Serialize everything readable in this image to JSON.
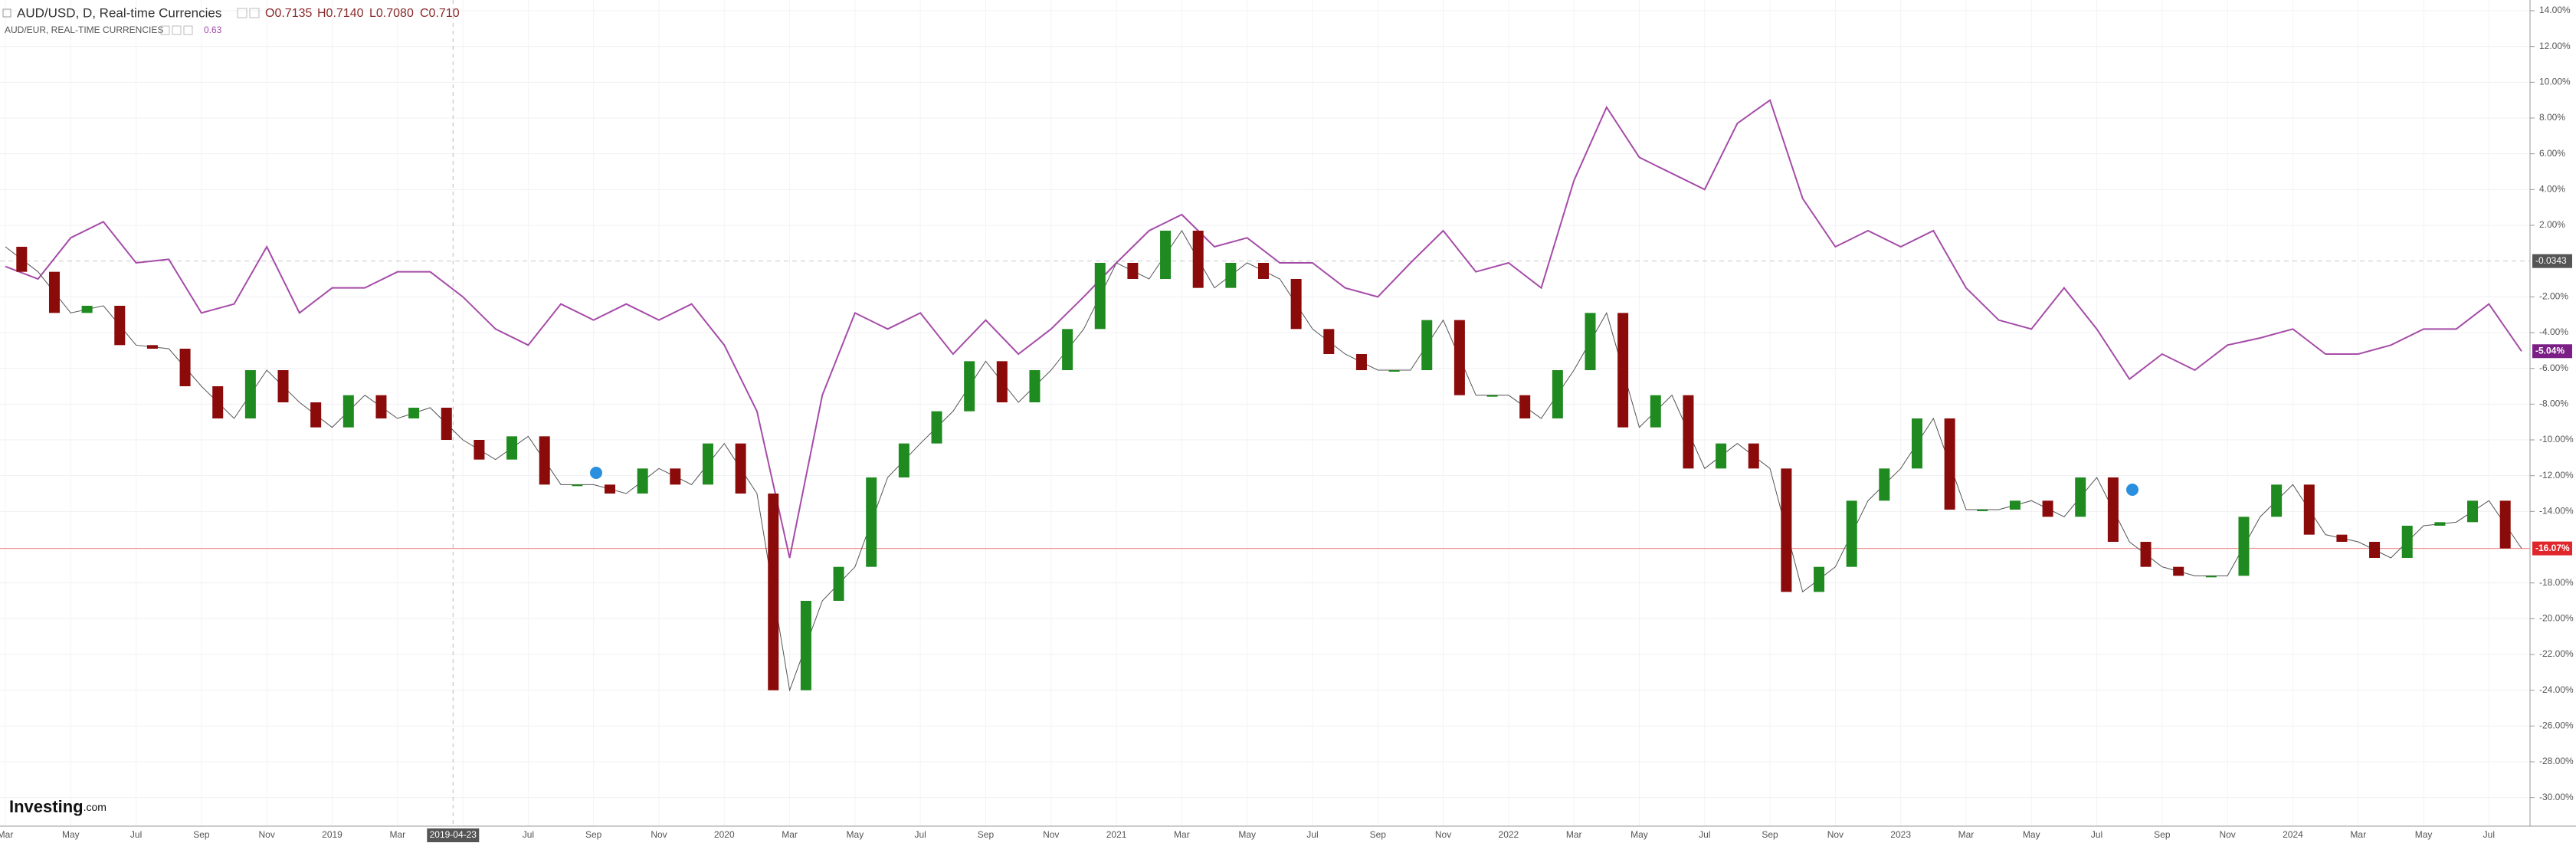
{
  "chart_data": {
    "type": "candle-line",
    "header": {
      "symbol": "AUD/USD, D, Real-time Currencies",
      "open": "O0.7135",
      "high": "H0.7140",
      "low": "L0.7080",
      "close": "C0.710"
    },
    "compare": {
      "symbol": "AUD/EUR, REAL-TIME CURRENCIES",
      "value": "0.63"
    },
    "baseline_label": "-0.0343",
    "crosshair_label": "2019-04-23",
    "logo": {
      "main": "Investing",
      "suffix": ".com"
    },
    "xticks": [
      "Mar",
      "May",
      "Jul",
      "Sep",
      "Nov",
      "2019",
      "Mar",
      null,
      "Jul",
      "Sep",
      "Nov",
      "2020",
      "Mar",
      "May",
      "Jul",
      "Sep",
      "Nov",
      "2021",
      "Mar",
      "May",
      "Jul",
      "Sep",
      "Nov",
      "2022",
      "Mar",
      "May",
      "Jul",
      "Sep",
      "Nov",
      "2023",
      "Mar",
      "May",
      "Jul",
      "Sep",
      "Nov",
      "2024",
      "Mar",
      "May",
      "Jul"
    ],
    "ylim": [
      -31.6,
      14.6
    ],
    "yticks": [
      {
        "value": 14,
        "label": "14.00%"
      },
      {
        "value": 12,
        "label": "12.00%"
      },
      {
        "value": 10,
        "label": "10.00%"
      },
      {
        "value": 8,
        "label": "8.00%"
      },
      {
        "value": 6,
        "label": "6.00%"
      },
      {
        "value": 4,
        "label": "4.00%"
      },
      {
        "value": 2,
        "label": "2.00%"
      },
      {
        "value": -2,
        "label": "-2.00%"
      },
      {
        "value": -4,
        "label": "-4.00%"
      },
      {
        "value": -6,
        "label": "-6.00%"
      },
      {
        "value": -8,
        "label": "-8.00%"
      },
      {
        "value": -10,
        "label": "-10.00%"
      },
      {
        "value": -12,
        "label": "-12.00%"
      },
      {
        "value": -14,
        "label": "-14.00%"
      },
      {
        "value": -18,
        "label": "-18.00%"
      },
      {
        "value": -20,
        "label": "-20.00%"
      },
      {
        "value": -22,
        "label": "-22.00%"
      },
      {
        "value": -24,
        "label": "-24.00%"
      },
      {
        "value": -26,
        "label": "-26.00%"
      },
      {
        "value": -28,
        "label": "-28.00%"
      },
      {
        "value": -30,
        "label": "-30.00%"
      }
    ],
    "grid": true,
    "series": [
      {
        "name": "AUD/USD",
        "up_color": "#1f8a1f",
        "down_color": "#8b0a0a",
        "last_color": "#e0262b",
        "last_label": "-16.07%",
        "values": [
          0.8,
          -0.6,
          -2.9,
          -2.5,
          -4.7,
          -4.9,
          -7.0,
          -8.8,
          -6.1,
          -7.9,
          -9.3,
          -7.5,
          -8.8,
          -8.2,
          -10.0,
          -11.1,
          -9.8,
          -12.5,
          -12.5,
          -13.0,
          -11.6,
          -12.5,
          -10.2,
          -13.0,
          -24.0,
          -19.0,
          -17.1,
          -12.1,
          -10.2,
          -8.4,
          -5.6,
          -7.9,
          -6.1,
          -3.8,
          -0.1,
          -1.0,
          1.7,
          -1.5,
          -0.1,
          -1.0,
          -3.8,
          -5.2,
          -6.1,
          -6.1,
          -3.3,
          -7.5,
          -7.5,
          -8.8,
          -6.1,
          -2.9,
          -9.3,
          -7.5,
          -11.6,
          -10.2,
          -11.6,
          -18.5,
          -17.1,
          -13.4,
          -11.6,
          -8.8,
          -13.9,
          -13.9,
          -13.4,
          -14.3,
          -12.1,
          -15.7,
          -17.1,
          -17.6,
          -17.6,
          -14.3,
          -12.5,
          -15.3,
          -15.7,
          -16.6,
          -14.8,
          -14.6,
          -13.4,
          -16.07
        ]
      },
      {
        "name": "AUD/EUR",
        "color": "#a54ca8",
        "last_color": "#7b1f86",
        "last_label": "-5.04%",
        "values": [
          -0.3,
          -1.0,
          1.3,
          2.2,
          -0.1,
          0.1,
          -2.9,
          -2.4,
          0.8,
          -2.9,
          -1.5,
          -1.5,
          -0.6,
          -0.6,
          -2.0,
          -3.8,
          -4.7,
          -2.4,
          -3.3,
          -2.4,
          -3.3,
          -2.4,
          -4.7,
          -8.4,
          -16.6,
          -7.5,
          -2.9,
          -3.8,
          -2.9,
          -5.2,
          -3.3,
          -5.2,
          -3.8,
          -2.0,
          -0.1,
          1.7,
          2.6,
          0.8,
          1.3,
          -0.1,
          -0.1,
          -1.5,
          -2.0,
          -0.1,
          1.7,
          -0.6,
          -0.1,
          -1.5,
          4.5,
          8.6,
          5.8,
          4.9,
          4.0,
          7.7,
          9.0,
          3.5,
          0.8,
          1.7,
          0.8,
          1.7,
          -1.5,
          -3.3,
          -3.8,
          -1.5,
          -3.8,
          -6.6,
          -5.2,
          -6.1,
          -4.7,
          -4.3,
          -3.8,
          -5.2,
          -5.2,
          -4.7,
          -3.8,
          -3.8,
          -2.4,
          -5.04
        ]
      }
    ]
  }
}
